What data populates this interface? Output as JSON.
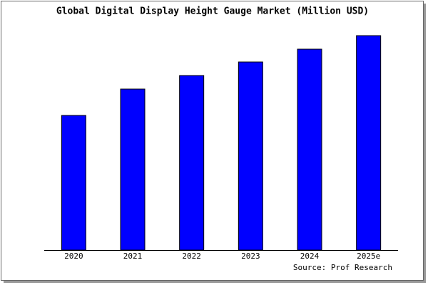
{
  "chart_data": {
    "type": "bar",
    "title": "Global Digital Display Height Gauge Market (Million USD)",
    "categories": [
      "2020",
      "2021",
      "2022",
      "2023",
      "2024",
      "2025e"
    ],
    "values": [
      189,
      226,
      245,
      264,
      282,
      301
    ],
    "color": "#0000ff",
    "ylim": [
      0,
      306
    ],
    "source": "Source: Prof Research"
  }
}
